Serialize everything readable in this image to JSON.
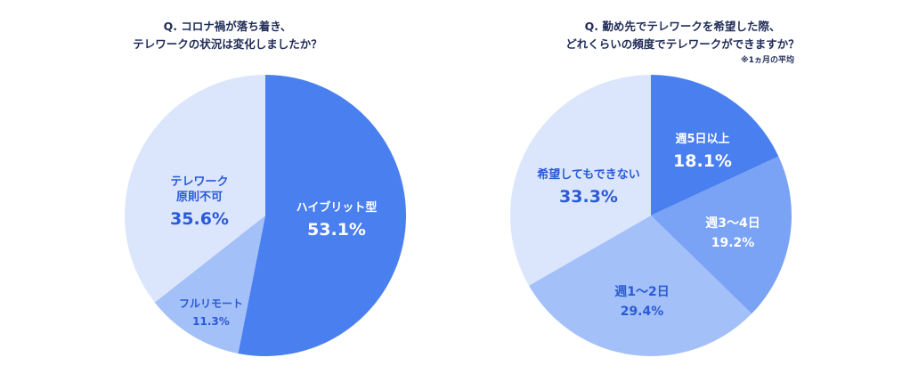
{
  "chart_data": [
    {
      "type": "pie",
      "title_lines": [
        "Q. コロナ禍が落ち着き、",
        "テレワークの状況は変化しましたか？"
      ],
      "slices": [
        {
          "label": "ハイブリット型",
          "value": 53.1,
          "value_label": "53.1%",
          "color": "#4a7ff0",
          "text_color": "#ffffff"
        },
        {
          "label": "フルリモート",
          "value": 11.3,
          "value_label": "11.3%",
          "color": "#a3c0f8",
          "text_color": "#2a5ad8"
        },
        {
          "label": "テレワーク\n原則不可",
          "value": 35.6,
          "value_label": "35.6%",
          "color": "#dbe6fc",
          "text_color": "#2a5ad8"
        }
      ]
    },
    {
      "type": "pie",
      "title_lines": [
        "Q. 勤め先でテレワークを希望した際、",
        "どれくらいの頻度でテレワークができますか？"
      ],
      "note": "※1ヵ月の平均",
      "slices": [
        {
          "label": "週5日以上",
          "value": 18.1,
          "value_label": "18.1%",
          "color": "#4a7ff0",
          "text_color": "#ffffff"
        },
        {
          "label": "週3〜4日",
          "value": 19.2,
          "value_label": "19.2%",
          "color": "#7aa2f5",
          "text_color": "#ffffff"
        },
        {
          "label": "週1〜2日",
          "value": 29.4,
          "value_label": "29.4%",
          "color": "#a3c0f8",
          "text_color": "#2a5ad8"
        },
        {
          "label": "希望してもできない",
          "value": 33.3,
          "value_label": "33.3%",
          "color": "#dbe6fc",
          "text_color": "#2a5ad8"
        }
      ]
    }
  ]
}
